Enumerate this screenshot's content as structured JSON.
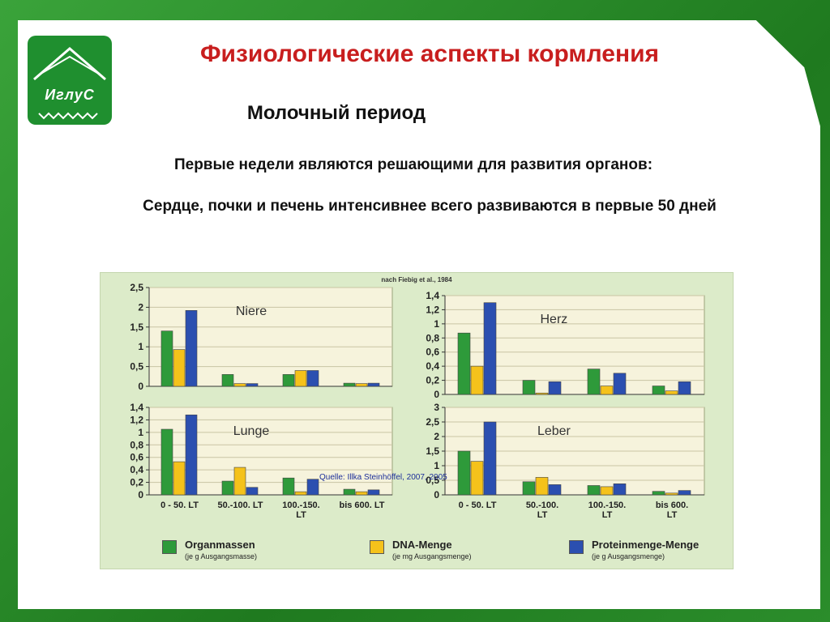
{
  "slide": {
    "logo_text": "ИглуС",
    "title": "Физиологические аспекты кормления",
    "subtitle": "Молочный период",
    "line1": "Первые недели являются решающими для развития органов:",
    "line2": "Сердце, почки и печень интенсивнее всего развиваются в первые 50 дней"
  },
  "figure": {
    "source_top": "nach Fiebig et al., 1984",
    "quelle": "Quelle: Illka Steinhöffel, 2007, 2005",
    "colors": {
      "Organmassen": "#2e9a3a",
      "DNA-Menge": "#f5c21b",
      "Proteinmenge-Menge": "#2b4fb0"
    },
    "legend": [
      {
        "label": "Organmassen",
        "sub": "(je g Ausgangsmasse)",
        "color": "#2e9a3a"
      },
      {
        "label": "DNA-Menge",
        "sub": "(je mg Ausgangsmenge)",
        "color": "#f5c21b"
      },
      {
        "label": "Proteinmenge-Menge",
        "sub": "(je g Ausgangsmenge)",
        "color": "#2b4fb0"
      }
    ]
  },
  "chart_data": [
    {
      "type": "bar",
      "title": "Niere",
      "categories": [
        "0 - 50. LT",
        "50.-100. LT",
        "100.-150. LT",
        "bis 600. LT"
      ],
      "series": [
        {
          "name": "Organmassen",
          "values": [
            1.4,
            0.3,
            0.3,
            0.08
          ]
        },
        {
          "name": "DNA-Menge",
          "values": [
            0.93,
            0.07,
            0.4,
            0.07
          ]
        },
        {
          "name": "Proteinmenge-Menge",
          "values": [
            1.92,
            0.07,
            0.4,
            0.08
          ]
        }
      ],
      "ylim": [
        0,
        2.5
      ],
      "yticks": [
        "0",
        "0,5",
        "1",
        "1,5",
        "2",
        "2,5"
      ],
      "show_category_labels": false
    },
    {
      "type": "bar",
      "title": "Herz",
      "categories": [
        "0 - 50. LT",
        "50.-100. LT",
        "100.-150. LT",
        "bis 600. LT"
      ],
      "series": [
        {
          "name": "Organmassen",
          "values": [
            0.87,
            0.2,
            0.36,
            0.12
          ]
        },
        {
          "name": "DNA-Menge",
          "values": [
            0.4,
            0.02,
            0.12,
            0.05
          ]
        },
        {
          "name": "Proteinmenge-Menge",
          "values": [
            1.3,
            0.18,
            0.3,
            0.18
          ]
        }
      ],
      "ylim": [
        0,
        1.4
      ],
      "yticks": [
        "0",
        "0,2",
        "0,4",
        "0,6",
        "0,8",
        "1",
        "1,2",
        "1,4"
      ],
      "show_category_labels": false
    },
    {
      "type": "bar",
      "title": "Lunge",
      "categories": [
        "0 - 50. LT",
        "50.-100. LT",
        "100.-150. LT",
        "bis 600. LT"
      ],
      "category_labels": [
        "0 - 50. LT",
        "50.-100. LT",
        "100.-150.\nLT",
        "bis 600. LT"
      ],
      "series": [
        {
          "name": "Organmassen",
          "values": [
            1.05,
            0.22,
            0.27,
            0.09
          ]
        },
        {
          "name": "DNA-Menge",
          "values": [
            0.53,
            0.44,
            0.05,
            0.05
          ]
        },
        {
          "name": "Proteinmenge-Menge",
          "values": [
            1.28,
            0.12,
            0.25,
            0.08
          ]
        }
      ],
      "ylim": [
        0,
        1.4
      ],
      "yticks": [
        "0",
        "0,2",
        "0,4",
        "0,6",
        "0,8",
        "1",
        "1,2",
        "1,4"
      ],
      "show_category_labels": true
    },
    {
      "type": "bar",
      "title": "Leber",
      "categories": [
        "0 - 50. LT",
        "50.-100. LT",
        "100.-150. LT",
        "bis 600. LT"
      ],
      "category_labels": [
        "0 - 50. LT",
        "50.-100.\nLT",
        "100.-150.\nLT",
        "bis 600.\nLT"
      ],
      "series": [
        {
          "name": "Organmassen",
          "values": [
            1.5,
            0.45,
            0.32,
            0.12
          ]
        },
        {
          "name": "DNA-Menge",
          "values": [
            1.15,
            0.6,
            0.28,
            0.06
          ]
        },
        {
          "name": "Proteinmenge-Menge",
          "values": [
            2.5,
            0.35,
            0.38,
            0.15
          ]
        }
      ],
      "ylim": [
        0,
        3
      ],
      "yticks": [
        "0",
        "0,5",
        "1",
        "1,5",
        "2",
        "2,5",
        "3"
      ],
      "show_category_labels": true
    }
  ]
}
